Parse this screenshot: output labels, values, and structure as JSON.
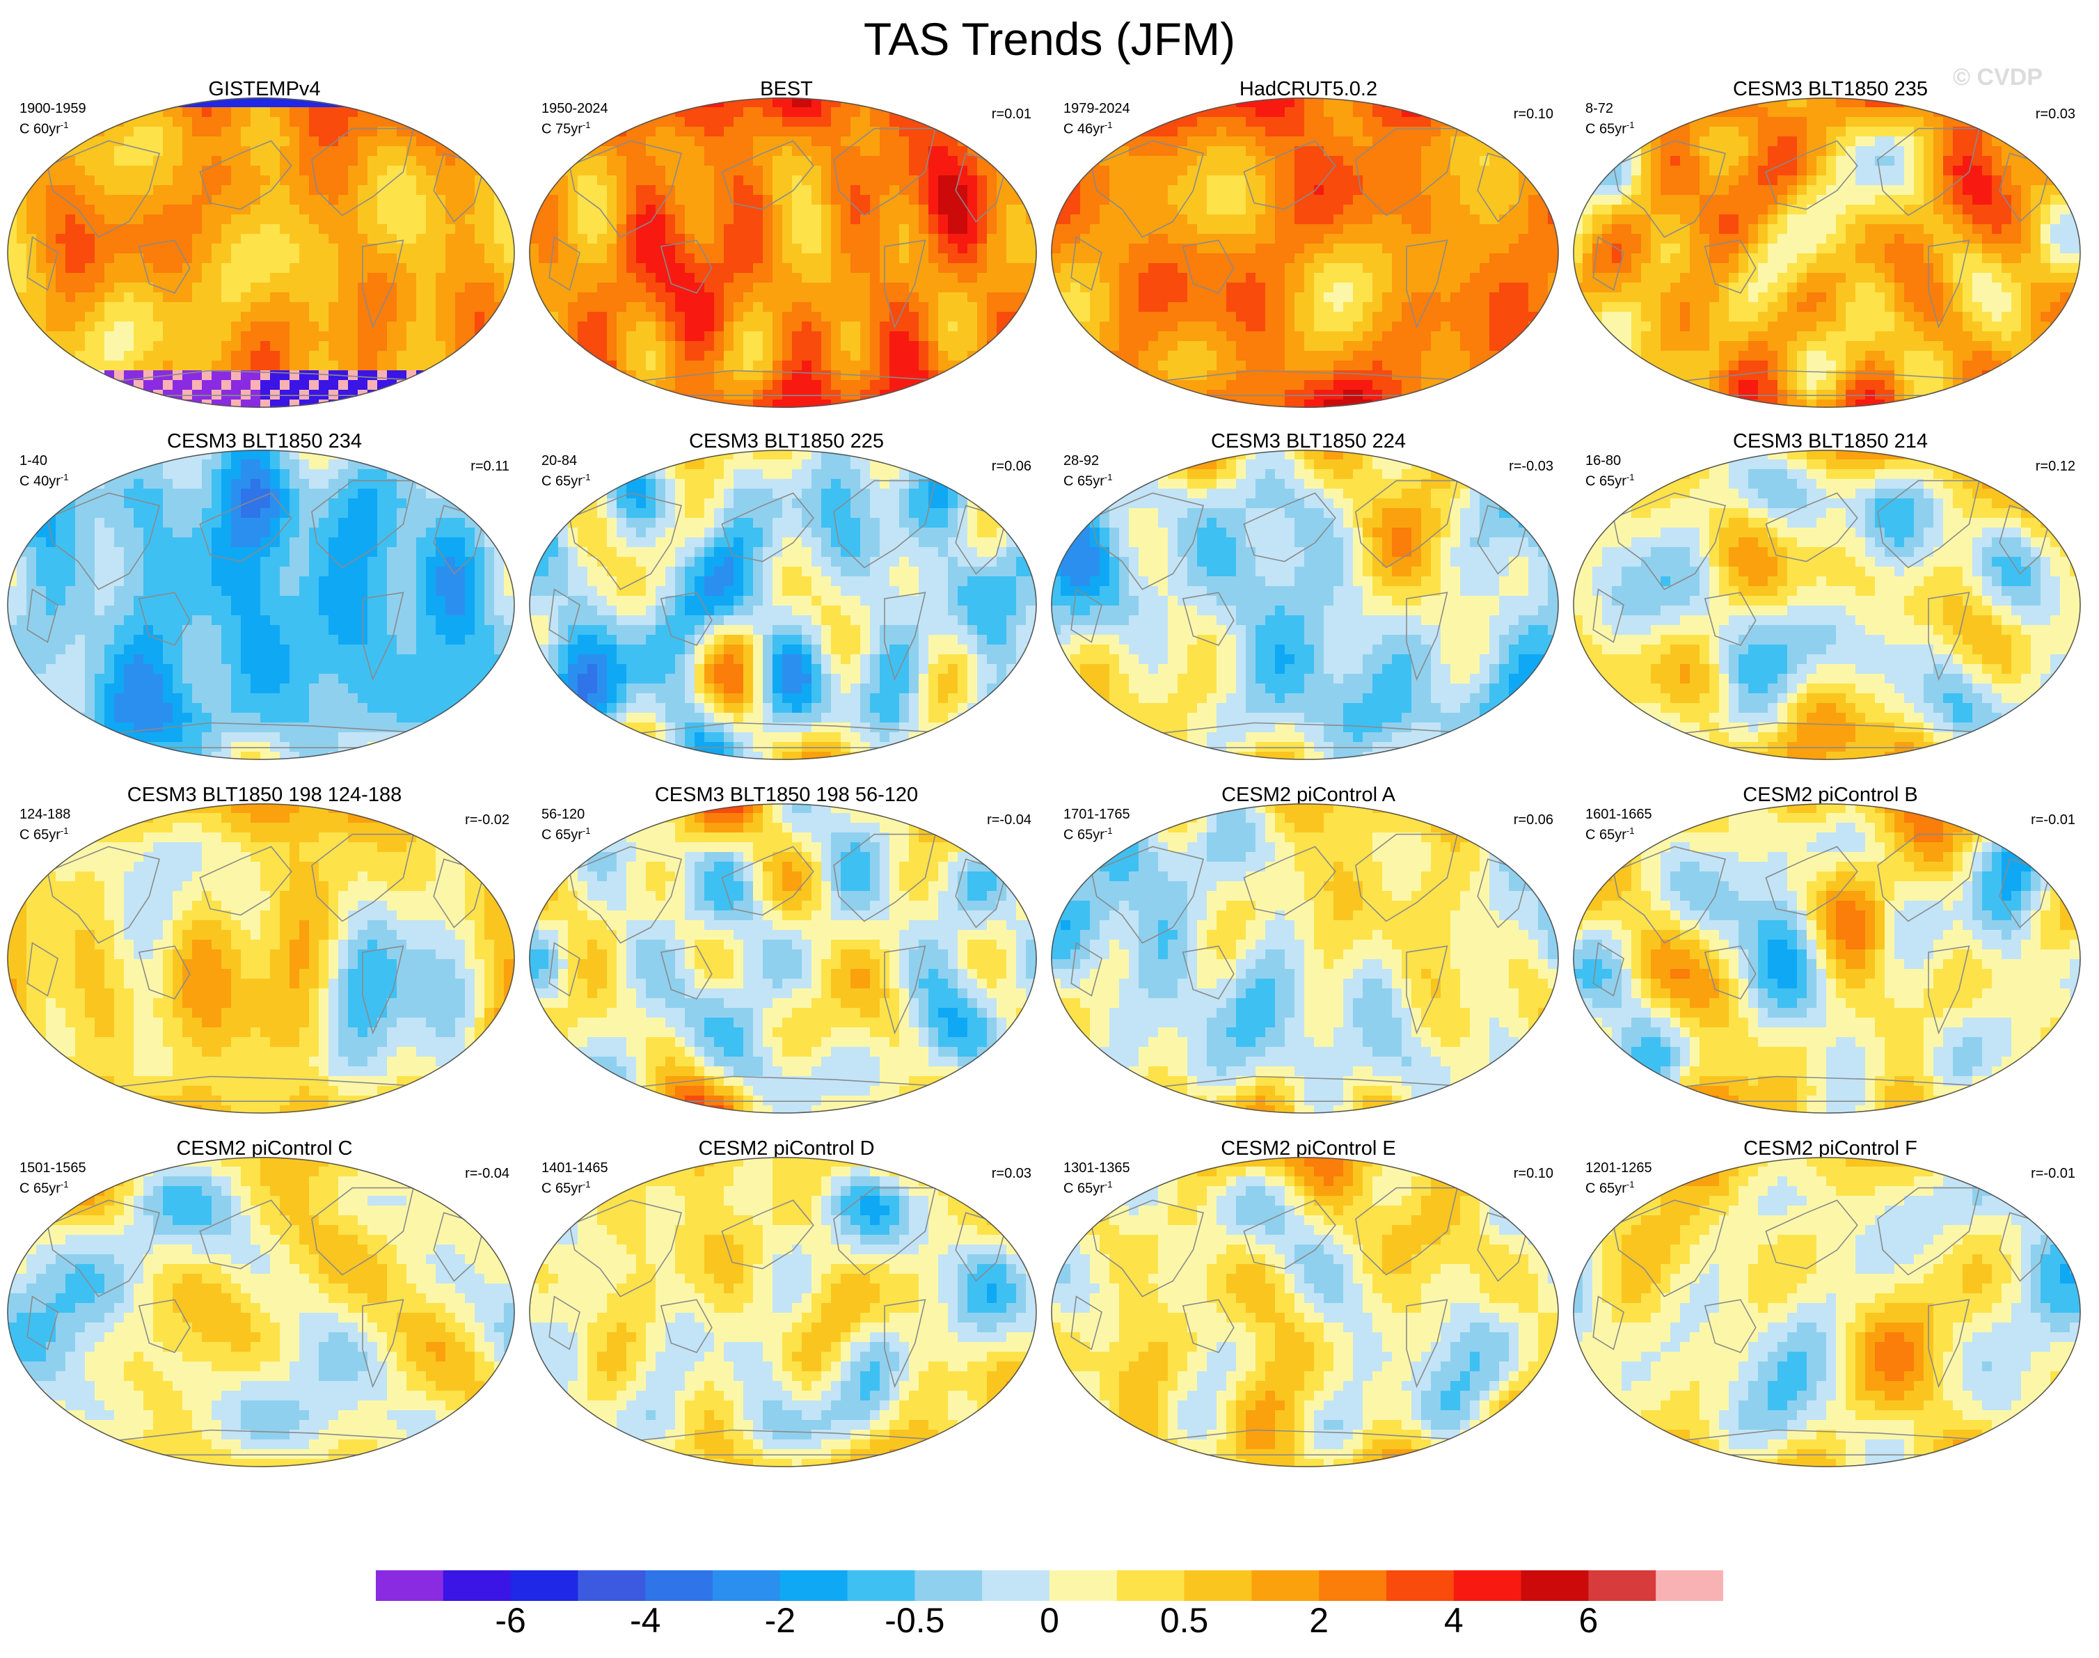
{
  "title": "TAS Trends (JFM)",
  "watermark": "© CVDP",
  "colors": {
    "scale": [
      "#8a2be2",
      "#3b14e6",
      "#1e28e6",
      "#3c5ae0",
      "#2f74e8",
      "#2b8ff0",
      "#0fa8f5",
      "#3fc0f3",
      "#8fd0ee",
      "#c2e4f6",
      "#fcf7a8",
      "#fde24a",
      "#fbc51f",
      "#fba10e",
      "#fb7d0a",
      "#f94b0c",
      "#f81a10",
      "#cc0a0a",
      "#d83b3b",
      "#f8b2b4"
    ],
    "land_outline": "#8a8a8a",
    "missing": "#ffffff"
  },
  "colorbar": {
    "labels": [
      {
        "text": "-6",
        "boundary": 2
      },
      {
        "text": "-4",
        "boundary": 4
      },
      {
        "text": "-2",
        "boundary": 6
      },
      {
        "text": "-0.5",
        "boundary": 8
      },
      {
        "text": "0",
        "boundary": 10
      },
      {
        "text": "0.5",
        "boundary": 12
      },
      {
        "text": "2",
        "boundary": 14
      },
      {
        "text": "4",
        "boundary": 16
      },
      {
        "text": "6",
        "boundary": 18
      }
    ]
  },
  "panels": [
    {
      "title": "GISTEMPv4",
      "period": "1900-1959",
      "units": "C 60yr",
      "corr": "",
      "mean": 12.6,
      "spread": 1.3,
      "seed": 11,
      "missing": true
    },
    {
      "title": "BEST",
      "period": "1950-2024",
      "units": "C 75yr",
      "corr": "r=0.01",
      "mean": 13.6,
      "spread": 0.9,
      "seed": 23,
      "missing": false
    },
    {
      "title": "HadCRUT5.0.2",
      "period": "1979-2024",
      "units": "C 46yr",
      "corr": "r=0.10",
      "mean": 13.3,
      "spread": 1.3,
      "seed": 37,
      "missing": false
    },
    {
      "title": "CESM3 BLT1850 235",
      "period": "8-72",
      "units": "C 65yr",
      "corr": "r=0.03",
      "mean": 12.2,
      "spread": 1.6,
      "seed": 41,
      "missing": false
    },
    {
      "title": "CESM3 BLT1850 234",
      "period": "1-40",
      "units": "C 40yr",
      "corr": "r=0.11",
      "mean": 7.2,
      "spread": 1.2,
      "seed": 53,
      "missing": false
    },
    {
      "title": "CESM3 BLT1850 225",
      "period": "20-84",
      "units": "C 65yr",
      "corr": "r=0.06",
      "mean": 8.6,
      "spread": 1.5,
      "seed": 61,
      "missing": false
    },
    {
      "title": "CESM3 BLT1850 224",
      "period": "28-92",
      "units": "C 65yr",
      "corr": "r=-0.03",
      "mean": 8.8,
      "spread": 1.8,
      "seed": 71,
      "missing": false
    },
    {
      "title": "CESM3 BLT1850 214",
      "period": "16-80",
      "units": "C 65yr",
      "corr": "r=0.12",
      "mean": 9.8,
      "spread": 1.5,
      "seed": 83,
      "missing": false
    },
    {
      "title": "CESM3 BLT1850 198 124-188",
      "period": "124-188",
      "units": "C 65yr",
      "corr": "r=-0.02",
      "mean": 10.6,
      "spread": 1.5,
      "seed": 97,
      "missing": false
    },
    {
      "title": "CESM3 BLT1850 198 56-120",
      "period": "56-120",
      "units": "C 65yr",
      "corr": "r=-0.04",
      "mean": 9.6,
      "spread": 1.5,
      "seed": 101,
      "missing": false
    },
    {
      "title": "CESM2 piControl A",
      "period": "1701-1765",
      "units": "C 65yr",
      "corr": "r=0.06",
      "mean": 9.5,
      "spread": 1.3,
      "seed": 113,
      "missing": false
    },
    {
      "title": "CESM2 piControl B",
      "period": "1601-1665",
      "units": "C 65yr",
      "corr": "r=-0.01",
      "mean": 10.0,
      "spread": 1.6,
      "seed": 127,
      "missing": false
    },
    {
      "title": "CESM2 piControl C",
      "period": "1501-1565",
      "units": "C 65yr",
      "corr": "r=-0.04",
      "mean": 9.9,
      "spread": 1.3,
      "seed": 131,
      "missing": false
    },
    {
      "title": "CESM2 piControl D",
      "period": "1401-1465",
      "units": "C 65yr",
      "corr": "r=0.03",
      "mean": 10.0,
      "spread": 1.2,
      "seed": 149,
      "missing": false
    },
    {
      "title": "CESM2 piControl E",
      "period": "1301-1365",
      "units": "C 65yr",
      "corr": "r=0.10",
      "mean": 10.2,
      "spread": 1.4,
      "seed": 157,
      "missing": false
    },
    {
      "title": "CESM2 piControl F",
      "period": "1201-1265",
      "units": "C 65yr",
      "corr": "r=-0.01",
      "mean": 10.0,
      "spread": 1.3,
      "seed": 163,
      "missing": false
    }
  ]
}
